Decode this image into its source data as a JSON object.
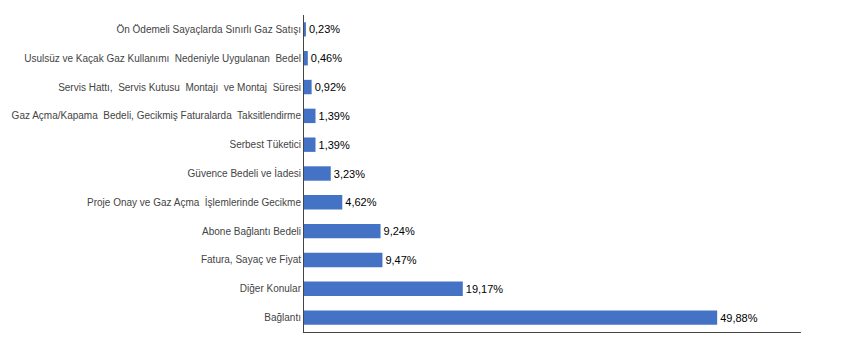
{
  "chart_data": {
    "type": "bar",
    "orientation": "horizontal",
    "categories": [
      "Bağlantı",
      "Diğer Konular",
      "Fatura, Sayaç ve Fiyat",
      "Abone Bağlantı Bedeli",
      "Proje Onay ve Gaz Açma  İşlemlerinde Gecikme",
      "Güvence Bedeli ve İadesi",
      "Serbest Tüketici",
      "Gaz Açma/Kapama  Bedeli, Gecikmiş Faturalarda  Taksitlendirme",
      "Servis Hattı,  Servis Kutusu  Montajı  ve Montaj  Süresi",
      "Usulsüz ve Kaçak Gaz Kullanımı  Nedeniyle Uygulanan  Bedel",
      "Ön Ödemeli Sayaçlarda Sınırlı Gaz Satışı"
    ],
    "values": [
      49.88,
      19.17,
      9.47,
      9.24,
      4.62,
      3.23,
      1.39,
      1.39,
      0.92,
      0.46,
      0.23
    ],
    "value_labels": [
      "49,88%",
      "19,17%",
      "9,47%",
      "9,24%",
      "4,62%",
      "3,23%",
      "1,39%",
      "1,39%",
      "0,92%",
      "0,46%",
      "0,23%"
    ],
    "data_labels": true,
    "color": "#4472C4",
    "xlim": [
      0,
      60
    ],
    "tick_labels": "y",
    "grid": false
  }
}
